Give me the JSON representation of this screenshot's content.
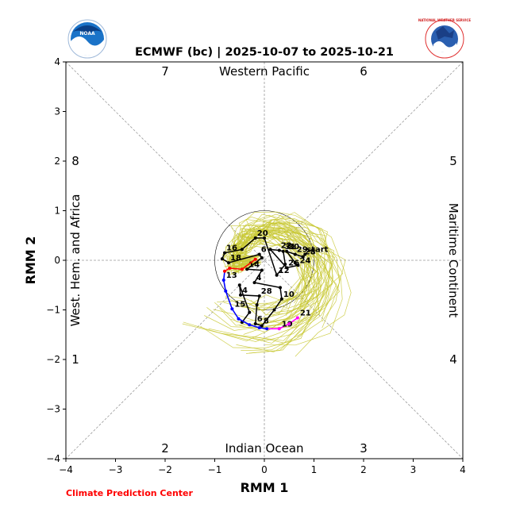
{
  "chart_data": {
    "type": "scatter",
    "title": "ECMWF (bc) | 2025-10-07 to 2025-10-21",
    "xlabel": "RMM 1",
    "ylabel": "RMM 2",
    "xlim": [
      -4,
      4
    ],
    "ylim": [
      -4,
      4
    ],
    "xticks": [
      -4,
      -3,
      -2,
      -1,
      0,
      1,
      2,
      3,
      4
    ],
    "yticks": [
      -4,
      -3,
      -2,
      -1,
      0,
      1,
      2,
      3,
      4
    ],
    "phase_numbers": [
      "1",
      "2",
      "3",
      "4",
      "5",
      "6",
      "7",
      "8"
    ],
    "region_labels": {
      "top": "Western Pacific",
      "bottom": "Indian Ocean",
      "left": "West. Hem. and Africa",
      "right": "Maritime Continent"
    },
    "unit_circle_radius": 1,
    "observed_track": {
      "color": "#000000",
      "points": [
        {
          "label": "start",
          "x": 0.82,
          "y": 0.12
        },
        {
          "label": "28",
          "x": 0.78,
          "y": 0.07
        },
        {
          "label": "29",
          "x": 0.62,
          "y": 0.12
        },
        {
          "label": "30",
          "x": 0.45,
          "y": 0.18
        },
        {
          "label": "",
          "x": 0.62,
          "y": -0.05
        },
        {
          "label": "24",
          "x": 0.68,
          "y": -0.1
        },
        {
          "label": "26",
          "x": 0.45,
          "y": -0.15
        },
        {
          "label": "",
          "x": 0.12,
          "y": 0.22
        },
        {
          "label": "22",
          "x": 0.3,
          "y": 0.2
        },
        {
          "label": "31",
          "x": 0.38,
          "y": 0.18
        },
        {
          "label": "",
          "x": 0.42,
          "y": -0.08
        },
        {
          "label": "12",
          "x": 0.25,
          "y": -0.3
        },
        {
          "label": "",
          "x": 0.0,
          "y": 0.45
        },
        {
          "label": "20",
          "x": -0.18,
          "y": 0.45
        },
        {
          "label": "",
          "x": -0.45,
          "y": 0.22
        },
        {
          "label": "16",
          "x": -0.8,
          "y": 0.15
        },
        {
          "label": "",
          "x": -0.85,
          "y": 0.03
        },
        {
          "label": "18",
          "x": -0.72,
          "y": -0.05
        },
        {
          "label": "6",
          "x": -0.1,
          "y": 0.12
        },
        {
          "label": "",
          "x": -0.05,
          "y": 0.05
        },
        {
          "label": "14",
          "x": -0.35,
          "y": -0.18
        },
        {
          "label": "",
          "x": -0.05,
          "y": -0.2
        },
        {
          "label": "4",
          "x": -0.2,
          "y": -0.45
        },
        {
          "label": "",
          "x": 0.32,
          "y": -0.55
        },
        {
          "label": "10",
          "x": 0.35,
          "y": -0.78
        },
        {
          "label": "",
          "x": 0.2,
          "y": -1.0
        },
        {
          "label": "8",
          "x": -0.05,
          "y": -1.32
        },
        {
          "label": "6",
          "x": -0.18,
          "y": -1.28
        },
        {
          "label": "",
          "x": -0.15,
          "y": -0.9
        },
        {
          "label": "28",
          "x": -0.1,
          "y": -0.72
        },
        {
          "label": "4",
          "x": -0.48,
          "y": -0.7
        },
        {
          "label": "",
          "x": -0.5,
          "y": -0.5
        },
        {
          "label": "",
          "x": -0.3,
          "y": -1.05
        },
        {
          "label": "",
          "x": -0.45,
          "y": -1.25
        }
      ]
    },
    "forecast_track": {
      "points": [
        {
          "label": "",
          "x": -0.18,
          "y": 0.02,
          "color": "#ff0000"
        },
        {
          "label": "",
          "x": -0.45,
          "y": -0.18,
          "color": "#ff0000"
        },
        {
          "label": "",
          "x": -0.7,
          "y": -0.16,
          "color": "#ff0000"
        },
        {
          "label": "",
          "x": -0.8,
          "y": -0.22,
          "color": "#ff0000"
        },
        {
          "label": "13",
          "x": -0.82,
          "y": -0.4,
          "color": "#0000ff"
        },
        {
          "label": "",
          "x": -0.78,
          "y": -0.62,
          "color": "#0000ff"
        },
        {
          "label": "15",
          "x": -0.65,
          "y": -0.98,
          "color": "#0000ff"
        },
        {
          "label": "",
          "x": -0.52,
          "y": -1.18,
          "color": "#0000ff"
        },
        {
          "label": "",
          "x": -0.3,
          "y": -1.3,
          "color": "#0000ff"
        },
        {
          "label": "",
          "x": -0.1,
          "y": -1.36,
          "color": "#0000ff"
        },
        {
          "label": "",
          "x": 0.05,
          "y": -1.38,
          "color": "#0000ff"
        },
        {
          "label": "19",
          "x": 0.3,
          "y": -1.38,
          "color": "#ff00ff"
        },
        {
          "label": "",
          "x": 0.5,
          "y": -1.28,
          "color": "#ff00ff"
        },
        {
          "label": "21",
          "x": 0.67,
          "y": -1.16,
          "color": "#ff00ff"
        }
      ]
    },
    "ensemble_color": "#c8c832",
    "ensemble_member_count": 50,
    "logos": {
      "left": "NOAA",
      "right": "NATIONAL WEATHER SERVICE"
    },
    "footer": "Climate Prediction Center"
  }
}
